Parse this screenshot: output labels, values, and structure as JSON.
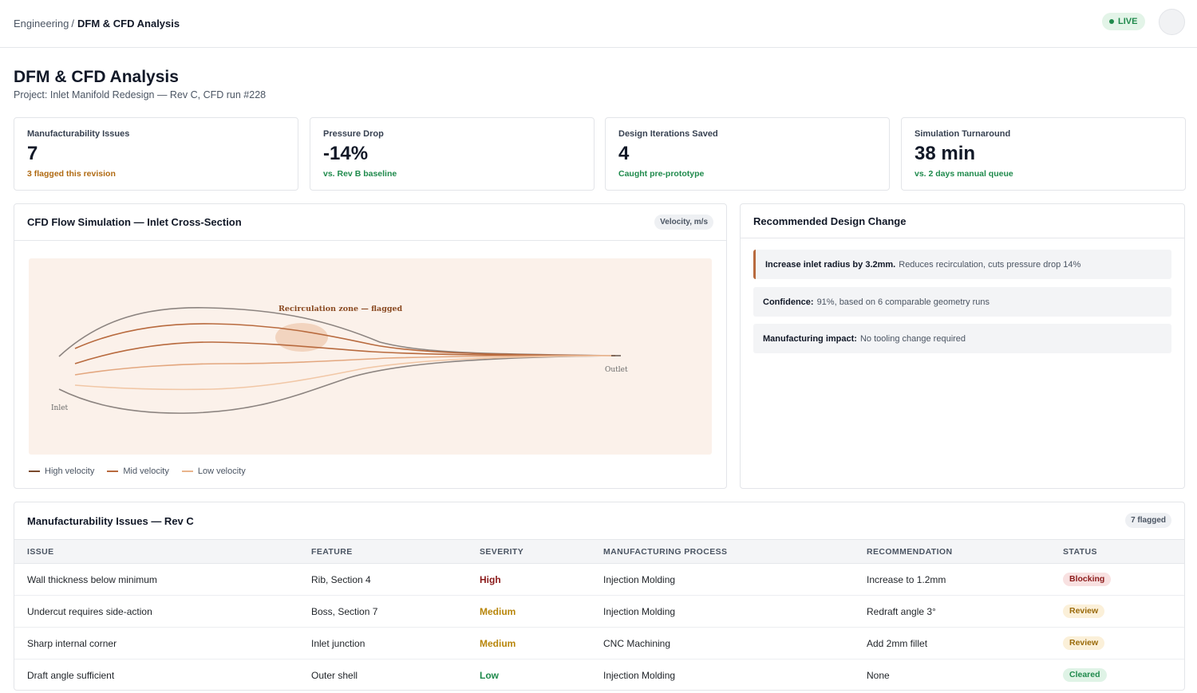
{
  "header": {
    "breadcrumb_parent": "Engineering",
    "breadcrumb_sep": "/",
    "breadcrumb_current": "DFM & CFD Analysis",
    "live_label": "LIVE"
  },
  "page": {
    "title": "DFM & CFD Analysis",
    "subtitle": "Project: Inlet Manifold Redesign — Rev C, CFD run #228"
  },
  "kpis": [
    {
      "label": "Manufacturability Issues",
      "value": "7",
      "note": "3 flagged this revision",
      "note_color": "#b06a12"
    },
    {
      "label": "Pressure Drop",
      "value": "-14%",
      "note": "vs. Rev B baseline",
      "note_color": "#1f8a4c"
    },
    {
      "label": "Design Iterations Saved",
      "value": "4",
      "note": "Caught pre-prototype",
      "note_color": "#1f8a4c"
    },
    {
      "label": "Simulation Turnaround",
      "value": "38 min",
      "note": "vs. 2 days manual queue",
      "note_color": "#1f8a4c"
    }
  ],
  "cfd": {
    "title": "CFD Flow Simulation — Inlet Cross-Section",
    "unit_badge": "Velocity, m/s",
    "annotation": "Recirculation zone — flagged",
    "inlet_label": "Inlet",
    "outlet_label": "Outlet",
    "legend": [
      {
        "label": "High velocity",
        "color": "#7a4a2c"
      },
      {
        "label": "Mid velocity",
        "color": "#b86a3e"
      },
      {
        "label": "Low velocity",
        "color": "#e9b48c"
      }
    ]
  },
  "recommendation": {
    "title": "Recommended Design Change",
    "primary_bold": "Increase inlet radius by 3.2mm.",
    "primary_text": "Reduces recirculation, cuts pressure drop 14%",
    "confidence_bold": "Confidence:",
    "confidence_text": "91%, based on 6 comparable geometry runs",
    "impact_bold": "Manufacturing impact:",
    "impact_text": "No tooling change required"
  },
  "issues": {
    "title": "Manufacturability Issues — Rev C",
    "count_badge": "7 flagged",
    "columns": [
      "ISSUE",
      "FEATURE",
      "SEVERITY",
      "MANUFACTURING PROCESS",
      "RECOMMENDATION",
      "STATUS"
    ],
    "rows": [
      {
        "issue": "Wall thickness below minimum",
        "feature": "Rib, Section 4",
        "severity": "High",
        "process": "Injection Molding",
        "recommendation": "Increase to 1.2mm",
        "status": "Blocking"
      },
      {
        "issue": "Undercut requires side-action",
        "feature": "Boss, Section 7",
        "severity": "Medium",
        "process": "Injection Molding",
        "recommendation": "Redraft angle 3°",
        "status": "Review"
      },
      {
        "issue": "Sharp internal corner",
        "feature": "Inlet junction",
        "severity": "Medium",
        "process": "CNC Machining",
        "recommendation": "Add 2mm fillet",
        "status": "Review"
      },
      {
        "issue": "Draft angle sufficient",
        "feature": "Outer shell",
        "severity": "Low",
        "process": "Injection Molding",
        "recommendation": "None",
        "status": "Cleared"
      }
    ]
  },
  "colors": {
    "severity": {
      "High": "#8b1a1a",
      "Medium": "#b8860b",
      "Low": "#1f8a4c"
    },
    "status_bg": {
      "Blocking": "#f8e1e1",
      "Review": "#fbf0d9",
      "Cleared": "#dff3e6"
    },
    "status_fg": {
      "Blocking": "#8b1a1a",
      "Review": "#9a6a0a",
      "Cleared": "#1f8a4c"
    }
  }
}
